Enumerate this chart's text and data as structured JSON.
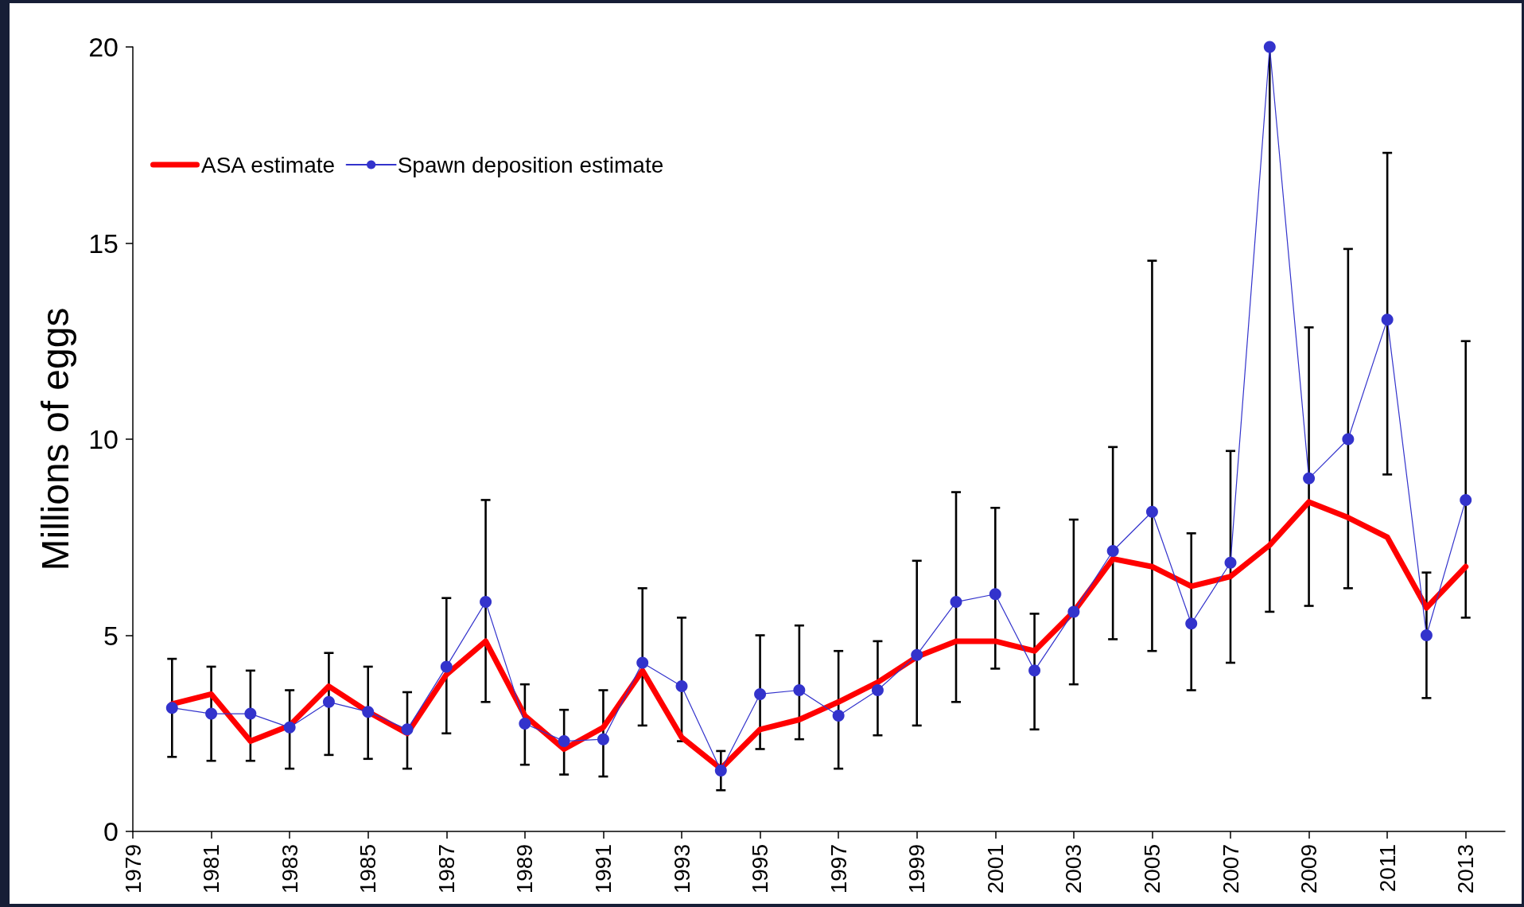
{
  "chart_data": {
    "type": "line",
    "ylabel": "Millions of eggs",
    "x": [
      1980,
      1981,
      1982,
      1983,
      1984,
      1985,
      1986,
      1987,
      1988,
      1989,
      1990,
      1991,
      1992,
      1993,
      1994,
      1995,
      1996,
      1997,
      1998,
      1999,
      2000,
      2001,
      2002,
      2003,
      2004,
      2005,
      2006,
      2007,
      2008,
      2009,
      2010,
      2011,
      2012,
      2013
    ],
    "xlim": [
      1979,
      2014
    ],
    "xticks": [
      1979,
      1981,
      1983,
      1985,
      1987,
      1989,
      1991,
      1993,
      1995,
      1997,
      1999,
      2001,
      2003,
      2005,
      2007,
      2009,
      2011,
      2013
    ],
    "ylim": [
      0,
      20
    ],
    "yticks": [
      0,
      5,
      10,
      15,
      20
    ],
    "legend": "top left",
    "series": [
      {
        "name": "ASA estimate",
        "color": "#ff0000",
        "marker": "none",
        "values": [
          3.25,
          3.5,
          2.3,
          2.7,
          3.7,
          3.05,
          2.5,
          4.0,
          4.85,
          2.95,
          2.1,
          2.65,
          4.1,
          2.4,
          1.6,
          2.6,
          2.85,
          3.3,
          3.8,
          4.45,
          4.85,
          4.85,
          4.6,
          5.6,
          6.95,
          6.75,
          6.25,
          6.5,
          7.3,
          8.4,
          8.0,
          7.5,
          5.7,
          6.75
        ]
      },
      {
        "name": "Spawn deposition estimate",
        "color": "#3333cc",
        "marker": "circle",
        "values": [
          3.15,
          3.0,
          3.0,
          2.65,
          3.3,
          3.05,
          2.6,
          4.2,
          5.85,
          2.75,
          2.3,
          2.35,
          4.3,
          3.7,
          1.55,
          3.5,
          3.6,
          2.95,
          3.6,
          4.5,
          5.85,
          6.05,
          4.1,
          5.6,
          7.15,
          8.15,
          5.3,
          6.85,
          20,
          9.0,
          10.0,
          13.05,
          5.0,
          8.45
        ],
        "errors": [
          [
            1.9,
            4.4
          ],
          [
            1.8,
            4.2
          ],
          [
            1.8,
            4.1
          ],
          [
            1.6,
            3.6
          ],
          [
            1.95,
            4.55
          ],
          [
            1.85,
            4.2
          ],
          [
            1.6,
            3.55
          ],
          [
            2.5,
            5.95
          ],
          [
            3.3,
            8.45
          ],
          [
            1.7,
            3.75
          ],
          [
            1.45,
            3.1
          ],
          [
            1.4,
            3.6
          ],
          [
            2.7,
            6.2
          ],
          [
            2.3,
            5.45
          ],
          [
            1.05,
            2.05
          ],
          [
            2.1,
            5.0
          ],
          [
            2.35,
            5.25
          ],
          [
            1.6,
            4.6
          ],
          [
            2.45,
            4.85
          ],
          [
            2.7,
            6.9
          ],
          [
            3.3,
            8.65
          ],
          [
            4.15,
            8.25
          ],
          [
            2.6,
            5.55
          ],
          [
            3.75,
            7.95
          ],
          [
            4.9,
            9.8
          ],
          [
            4.6,
            14.55
          ],
          [
            3.6,
            7.6
          ],
          [
            4.3,
            9.7
          ],
          [
            5.6,
            20
          ],
          [
            5.75,
            12.85
          ],
          [
            6.2,
            14.85
          ],
          [
            9.1,
            17.3
          ],
          [
            3.4,
            6.6
          ],
          [
            5.45,
            12.5
          ]
        ]
      }
    ]
  }
}
